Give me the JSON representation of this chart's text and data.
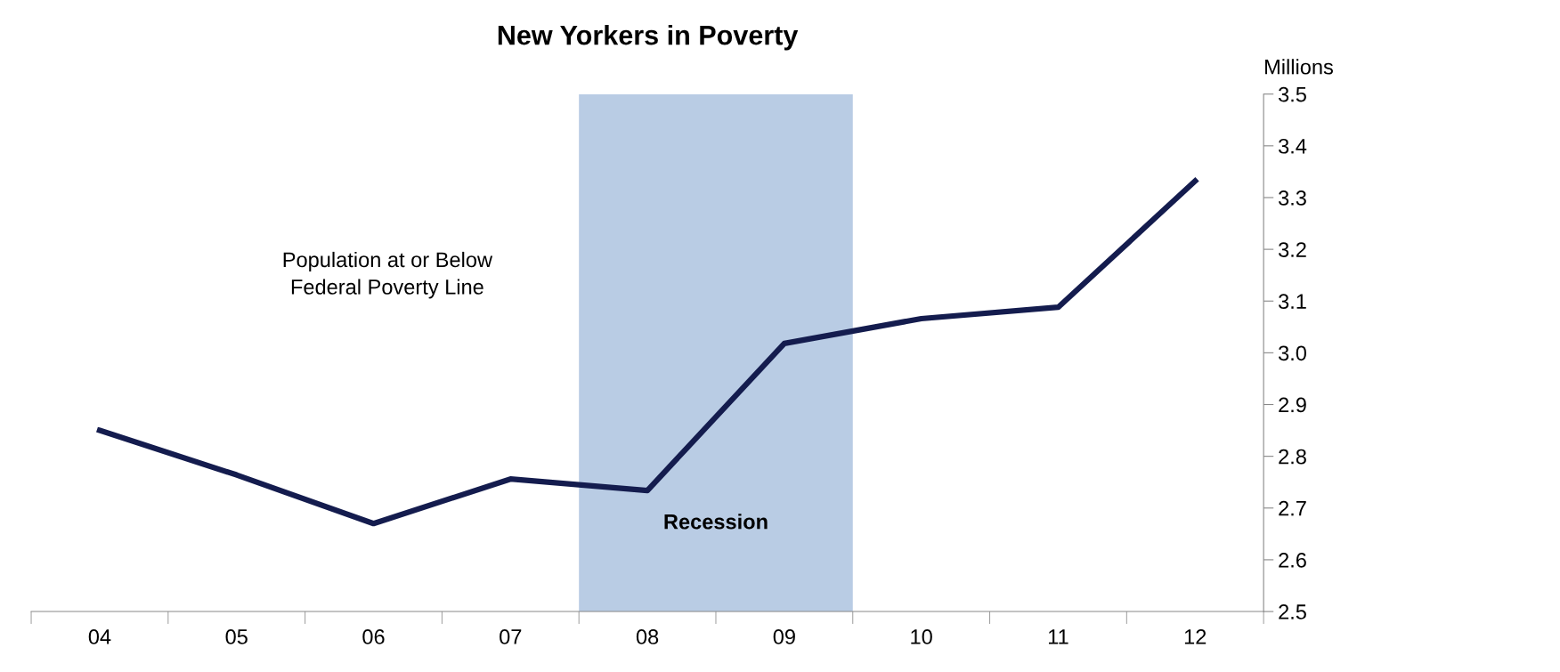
{
  "chart_data": {
    "type": "line",
    "title": "New Yorkers in Poverty",
    "ylabel": "Millions",
    "categories": [
      "04",
      "05",
      "06",
      "07",
      "08",
      "09",
      "10",
      "11",
      "12"
    ],
    "series": [
      {
        "color": "#141c4e",
        "values": [
          2.85,
          2.764,
          2.67,
          2.756,
          2.734,
          3.018,
          3.066,
          3.088,
          3.332
        ]
      }
    ],
    "ylim": [
      2.5,
      3.5
    ],
    "yticks": [
      2.5,
      2.6,
      2.7,
      2.8,
      2.9,
      {
        "value": 3.0,
        "label": "3.0"
      },
      3.1,
      3.2,
      3.3,
      3.4,
      3.5
    ],
    "bands": [
      {
        "axis": "x",
        "from": "08",
        "to": "09",
        "label": "Recession",
        "color": "#b9cce4"
      }
    ],
    "annotations": [
      "Population at or Below\nFederal Poverty Line"
    ],
    "grid": false,
    "legend": false,
    "marker": "none",
    "line_style": "solid"
  }
}
